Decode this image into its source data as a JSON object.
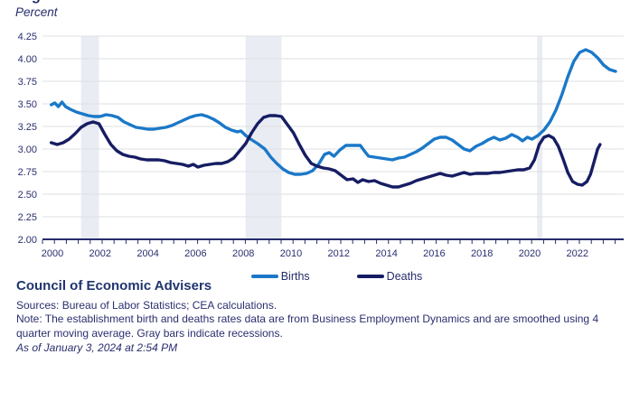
{
  "header": {
    "clipped_title_fragment": "g",
    "unit_label": "Percent"
  },
  "footer": {
    "organization": "Council of Economic Advisers",
    "sources": "Sources: Bureau of Labor Statistics; CEA calculations.",
    "note": "Note: The establishment birth and deaths rates data are from Business Employment Dynamics and are smoothed using 4 quarter moving average. Gray bars indicate recessions.",
    "as_of": "As of January 3, 2024 at 2:54 PM"
  },
  "chart_data": {
    "type": "line",
    "title": "",
    "xlabel": "",
    "ylabel": "Percent",
    "y_range": [
      2.0,
      4.25
    ],
    "x_range": [
      1999.6,
      2023.9
    ],
    "grid": "horizontal",
    "legend_position": "bottom-center",
    "y_ticks": [
      "4.25",
      "4.00",
      "3.75",
      "3.50",
      "3.25",
      "3.00",
      "2.75",
      "2.50",
      "2.25",
      "2.00"
    ],
    "x_tick_labels": [
      2000,
      2002,
      2004,
      2006,
      2008,
      2010,
      2012,
      2014,
      2016,
      2018,
      2020,
      2022
    ],
    "minor_tick_interval_years": 0.5,
    "colors": {
      "births": "#1B78C8",
      "deaths": "#161D63",
      "recession_band": "#E9ECF3",
      "gridline": "#DEDFE3",
      "axis": "#262C6A"
    },
    "recessions": [
      [
        2001.2,
        2001.95
      ],
      [
        2008.1,
        2009.6
      ],
      [
        2020.31,
        2020.53
      ]
    ],
    "series": [
      {
        "name": "Births",
        "color_key": "births",
        "points": [
          [
            1999.95,
            3.49
          ],
          [
            2000.1,
            3.51
          ],
          [
            2000.25,
            3.47
          ],
          [
            2000.4,
            3.52
          ],
          [
            2000.55,
            3.47
          ],
          [
            2000.75,
            3.44
          ],
          [
            2001.0,
            3.41
          ],
          [
            2001.25,
            3.39
          ],
          [
            2001.5,
            3.37
          ],
          [
            2001.75,
            3.36
          ],
          [
            2002.0,
            3.36
          ],
          [
            2002.25,
            3.38
          ],
          [
            2002.5,
            3.37
          ],
          [
            2002.75,
            3.35
          ],
          [
            2003.0,
            3.3
          ],
          [
            2003.25,
            3.27
          ],
          [
            2003.5,
            3.24
          ],
          [
            2003.75,
            3.23
          ],
          [
            2004.0,
            3.22
          ],
          [
            2004.25,
            3.22
          ],
          [
            2004.5,
            3.23
          ],
          [
            2004.75,
            3.24
          ],
          [
            2005.0,
            3.26
          ],
          [
            2005.25,
            3.29
          ],
          [
            2005.5,
            3.32
          ],
          [
            2005.75,
            3.35
          ],
          [
            2006.0,
            3.37
          ],
          [
            2006.25,
            3.38
          ],
          [
            2006.5,
            3.36
          ],
          [
            2006.75,
            3.33
          ],
          [
            2007.0,
            3.29
          ],
          [
            2007.25,
            3.24
          ],
          [
            2007.5,
            3.21
          ],
          [
            2007.75,
            3.19
          ],
          [
            2007.9,
            3.2
          ],
          [
            2008.1,
            3.15
          ],
          [
            2008.3,
            3.11
          ],
          [
            2008.6,
            3.06
          ],
          [
            2008.9,
            3.0
          ],
          [
            2009.15,
            2.91
          ],
          [
            2009.4,
            2.84
          ],
          [
            2009.65,
            2.78
          ],
          [
            2009.9,
            2.74
          ],
          [
            2010.15,
            2.72
          ],
          [
            2010.4,
            2.72
          ],
          [
            2010.65,
            2.73
          ],
          [
            2010.9,
            2.76
          ],
          [
            2011.15,
            2.83
          ],
          [
            2011.4,
            2.94
          ],
          [
            2011.6,
            2.96
          ],
          [
            2011.8,
            2.92
          ],
          [
            2012.05,
            2.99
          ],
          [
            2012.3,
            3.04
          ],
          [
            2012.6,
            3.04
          ],
          [
            2012.9,
            3.04
          ],
          [
            2013.1,
            2.97
          ],
          [
            2013.25,
            2.92
          ],
          [
            2013.5,
            2.91
          ],
          [
            2013.75,
            2.9
          ],
          [
            2014.0,
            2.89
          ],
          [
            2014.25,
            2.88
          ],
          [
            2014.5,
            2.9
          ],
          [
            2014.75,
            2.91
          ],
          [
            2015.0,
            2.94
          ],
          [
            2015.25,
            2.97
          ],
          [
            2015.5,
            3.01
          ],
          [
            2015.75,
            3.06
          ],
          [
            2016.0,
            3.11
          ],
          [
            2016.25,
            3.13
          ],
          [
            2016.5,
            3.13
          ],
          [
            2016.75,
            3.1
          ],
          [
            2017.0,
            3.05
          ],
          [
            2017.25,
            3.0
          ],
          [
            2017.5,
            2.98
          ],
          [
            2017.75,
            3.03
          ],
          [
            2018.0,
            3.06
          ],
          [
            2018.25,
            3.1
          ],
          [
            2018.5,
            3.13
          ],
          [
            2018.75,
            3.1
          ],
          [
            2019.0,
            3.12
          ],
          [
            2019.25,
            3.16
          ],
          [
            2019.5,
            3.13
          ],
          [
            2019.7,
            3.09
          ],
          [
            2019.9,
            3.13
          ],
          [
            2020.1,
            3.11
          ],
          [
            2020.35,
            3.15
          ],
          [
            2020.6,
            3.21
          ],
          [
            2020.85,
            3.3
          ],
          [
            2021.1,
            3.43
          ],
          [
            2021.35,
            3.6
          ],
          [
            2021.6,
            3.8
          ],
          [
            2021.85,
            3.97
          ],
          [
            2022.1,
            4.07
          ],
          [
            2022.35,
            4.1
          ],
          [
            2022.6,
            4.07
          ],
          [
            2022.85,
            4.01
          ],
          [
            2023.1,
            3.93
          ],
          [
            2023.35,
            3.88
          ],
          [
            2023.6,
            3.86
          ]
        ]
      },
      {
        "name": "Deaths",
        "color_key": "deaths",
        "points": [
          [
            1999.95,
            3.07
          ],
          [
            2000.2,
            3.05
          ],
          [
            2000.45,
            3.07
          ],
          [
            2000.7,
            3.11
          ],
          [
            2000.95,
            3.17
          ],
          [
            2001.2,
            3.24
          ],
          [
            2001.45,
            3.28
          ],
          [
            2001.7,
            3.3
          ],
          [
            2001.95,
            3.28
          ],
          [
            2002.2,
            3.16
          ],
          [
            2002.45,
            3.05
          ],
          [
            2002.7,
            2.98
          ],
          [
            2002.95,
            2.94
          ],
          [
            2003.2,
            2.92
          ],
          [
            2003.45,
            2.91
          ],
          [
            2003.7,
            2.89
          ],
          [
            2003.95,
            2.88
          ],
          [
            2004.2,
            2.88
          ],
          [
            2004.45,
            2.88
          ],
          [
            2004.7,
            2.87
          ],
          [
            2004.95,
            2.85
          ],
          [
            2005.2,
            2.84
          ],
          [
            2005.45,
            2.83
          ],
          [
            2005.7,
            2.81
          ],
          [
            2005.9,
            2.83
          ],
          [
            2006.1,
            2.8
          ],
          [
            2006.35,
            2.82
          ],
          [
            2006.6,
            2.83
          ],
          [
            2006.85,
            2.84
          ],
          [
            2007.1,
            2.84
          ],
          [
            2007.35,
            2.86
          ],
          [
            2007.6,
            2.9
          ],
          [
            2007.85,
            2.98
          ],
          [
            2008.1,
            3.06
          ],
          [
            2008.35,
            3.18
          ],
          [
            2008.6,
            3.28
          ],
          [
            2008.85,
            3.35
          ],
          [
            2009.1,
            3.37
          ],
          [
            2009.35,
            3.37
          ],
          [
            2009.6,
            3.36
          ],
          [
            2009.85,
            3.27
          ],
          [
            2010.1,
            3.18
          ],
          [
            2010.35,
            3.05
          ],
          [
            2010.6,
            2.93
          ],
          [
            2010.85,
            2.84
          ],
          [
            2011.1,
            2.81
          ],
          [
            2011.35,
            2.79
          ],
          [
            2011.6,
            2.78
          ],
          [
            2011.85,
            2.76
          ],
          [
            2012.1,
            2.71
          ],
          [
            2012.35,
            2.66
          ],
          [
            2012.6,
            2.67
          ],
          [
            2012.8,
            2.63
          ],
          [
            2013.0,
            2.66
          ],
          [
            2013.25,
            2.64
          ],
          [
            2013.5,
            2.65
          ],
          [
            2013.75,
            2.62
          ],
          [
            2014.0,
            2.6
          ],
          [
            2014.25,
            2.58
          ],
          [
            2014.5,
            2.58
          ],
          [
            2014.75,
            2.6
          ],
          [
            2015.0,
            2.62
          ],
          [
            2015.25,
            2.65
          ],
          [
            2015.5,
            2.67
          ],
          [
            2015.75,
            2.69
          ],
          [
            2016.0,
            2.71
          ],
          [
            2016.25,
            2.73
          ],
          [
            2016.5,
            2.71
          ],
          [
            2016.75,
            2.7
          ],
          [
            2017.0,
            2.72
          ],
          [
            2017.25,
            2.74
          ],
          [
            2017.5,
            2.72
          ],
          [
            2017.75,
            2.73
          ],
          [
            2018.0,
            2.73
          ],
          [
            2018.25,
            2.73
          ],
          [
            2018.5,
            2.74
          ],
          [
            2018.75,
            2.74
          ],
          [
            2019.0,
            2.75
          ],
          [
            2019.25,
            2.76
          ],
          [
            2019.5,
            2.77
          ],
          [
            2019.75,
            2.77
          ],
          [
            2020.0,
            2.79
          ],
          [
            2020.2,
            2.88
          ],
          [
            2020.4,
            3.05
          ],
          [
            2020.6,
            3.13
          ],
          [
            2020.8,
            3.15
          ],
          [
            2021.0,
            3.12
          ],
          [
            2021.2,
            3.03
          ],
          [
            2021.4,
            2.89
          ],
          [
            2021.6,
            2.74
          ],
          [
            2021.8,
            2.64
          ],
          [
            2022.0,
            2.61
          ],
          [
            2022.2,
            2.6
          ],
          [
            2022.4,
            2.64
          ],
          [
            2022.55,
            2.72
          ],
          [
            2022.7,
            2.86
          ],
          [
            2022.85,
            3.0
          ],
          [
            2022.95,
            3.05
          ]
        ]
      }
    ]
  }
}
